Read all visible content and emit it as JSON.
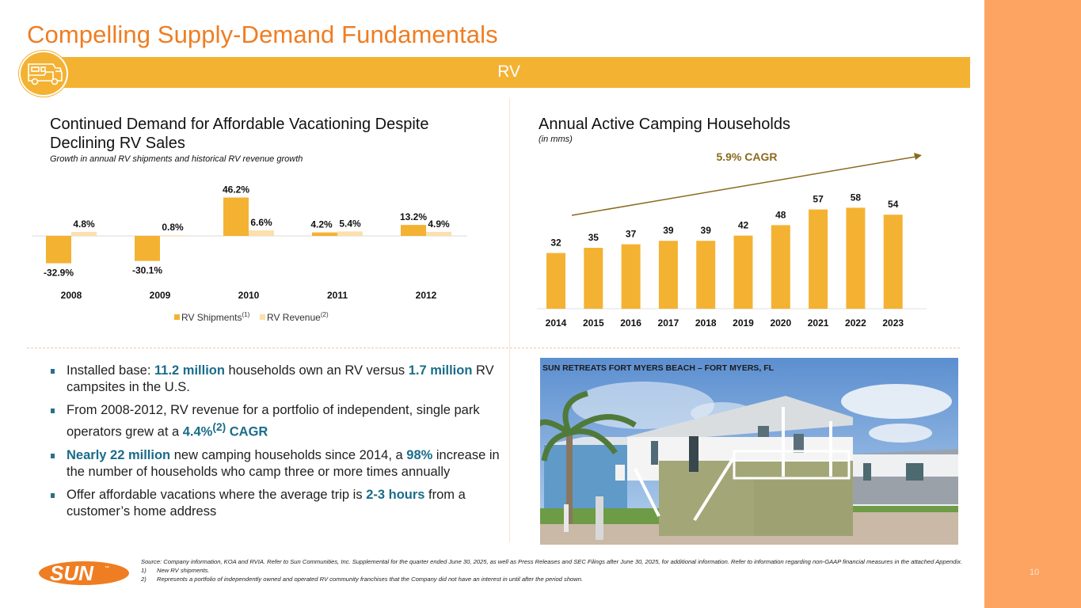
{
  "slide": {
    "title": "Compelling Supply-Demand Fundamentals",
    "section_label": "RV",
    "section_icon": "rv-motorhome-icon",
    "page_number": "10",
    "colors": {
      "title_orange": "#ef7d22",
      "bar_gold": "#f4b233",
      "bar_light": "#fbe0ae",
      "side_panel": "#fda462",
      "highlight_blue": "#1a6c8a",
      "cagr_brown": "#8a6a1e"
    }
  },
  "left_section": {
    "title_line1": "Continued Demand for Affordable Vacationing Despite",
    "title_line2": "Declining RV Sales",
    "subtitle": "Growth in annual RV shipments and historical RV revenue growth"
  },
  "right_section": {
    "title": "Annual Active Camping Households",
    "subtitle": "(in mms)"
  },
  "chart_data": [
    {
      "type": "bar",
      "title": "Growth in annual RV shipments and historical RV revenue growth",
      "categories": [
        "2008",
        "2009",
        "2010",
        "2011",
        "2012"
      ],
      "series": [
        {
          "name": "RV Shipments",
          "footnote": "(1)",
          "color": "#f4b233",
          "values": [
            -32.9,
            -30.1,
            46.2,
            4.2,
            13.2
          ],
          "labels": [
            "-32.9%",
            "-30.1%",
            "46.2%",
            "4.2%",
            "13.2%"
          ]
        },
        {
          "name": "RV Revenue",
          "footnote": "(2)",
          "color": "#fbe0ae",
          "values": [
            4.8,
            0.8,
            6.6,
            5.4,
            4.9
          ],
          "labels": [
            "4.8%",
            "0.8%",
            "6.6%",
            "5.4%",
            "4.9%"
          ]
        }
      ],
      "xlabel": "",
      "ylabel": "",
      "ylim": [
        -40,
        50
      ],
      "grid": false,
      "legend": "bottom"
    },
    {
      "type": "bar",
      "title": "Annual Active Camping Households",
      "subtitle": "(in mms)",
      "categories": [
        "2014",
        "2015",
        "2016",
        "2017",
        "2018",
        "2019",
        "2020",
        "2021",
        "2022",
        "2023"
      ],
      "values": [
        32,
        35,
        37,
        39,
        39,
        42,
        48,
        57,
        58,
        54
      ],
      "labels": [
        "32",
        "35",
        "37",
        "39",
        "39",
        "42",
        "48",
        "57",
        "58",
        "54"
      ],
      "color": "#f4b233",
      "annotation": "5.9% CAGR",
      "xlabel": "",
      "ylabel": "",
      "ylim": [
        0,
        70
      ],
      "grid": false
    }
  ],
  "bullets": [
    {
      "parts": [
        {
          "t": "Installed base: "
        },
        {
          "t": "11.2 million",
          "hl": true
        },
        {
          "t": " households own an RV versus "
        },
        {
          "t": "1.7 million",
          "hl": true
        },
        {
          "t": " RV campsites in the U.S."
        }
      ]
    },
    {
      "parts": [
        {
          "t": "From 2008-2012, RV revenue for a portfolio of independent, single park operators grew at a "
        },
        {
          "t": "4.4%",
          "hl": true,
          "sup": "(2)"
        },
        {
          "t": " CAGR",
          "hl": true
        }
      ]
    },
    {
      "parts": [
        {
          "t": "Nearly 22 million",
          "hl": true
        },
        {
          "t": " new camping households since 2014, a "
        },
        {
          "t": "98%",
          "hl": true
        },
        {
          "t": " increase in the number of households who camp three or more times annually"
        }
      ]
    },
    {
      "parts": [
        {
          "t": "Offer affordable vacations where the average trip is "
        },
        {
          "t": "2-3 hours",
          "hl": true
        },
        {
          "t": " from a customer’s home address"
        }
      ]
    }
  ],
  "photo": {
    "caption": "SUN RETREATS FORT MYERS BEACH – FORT MYERS, FL"
  },
  "logo": {
    "text": "SUN",
    "mark": "™"
  },
  "footnotes": {
    "source": "Source: Company information, KOA and RVIA. Refer to Sun Communities, Inc. Supplemental for the quarter ended June 30, 2025, as well as Press Releases and SEC Filings after June 30, 2025, for additional information. Refer to information regarding non-GAAP financial measures in the attached Appendix.",
    "notes": [
      {
        "num": "1)",
        "text": "New RV shipments."
      },
      {
        "num": "2)",
        "text": "Represents a portfolio of independently owned and operated RV community franchises that the Company did not have an interest in until after the period shown."
      }
    ]
  }
}
